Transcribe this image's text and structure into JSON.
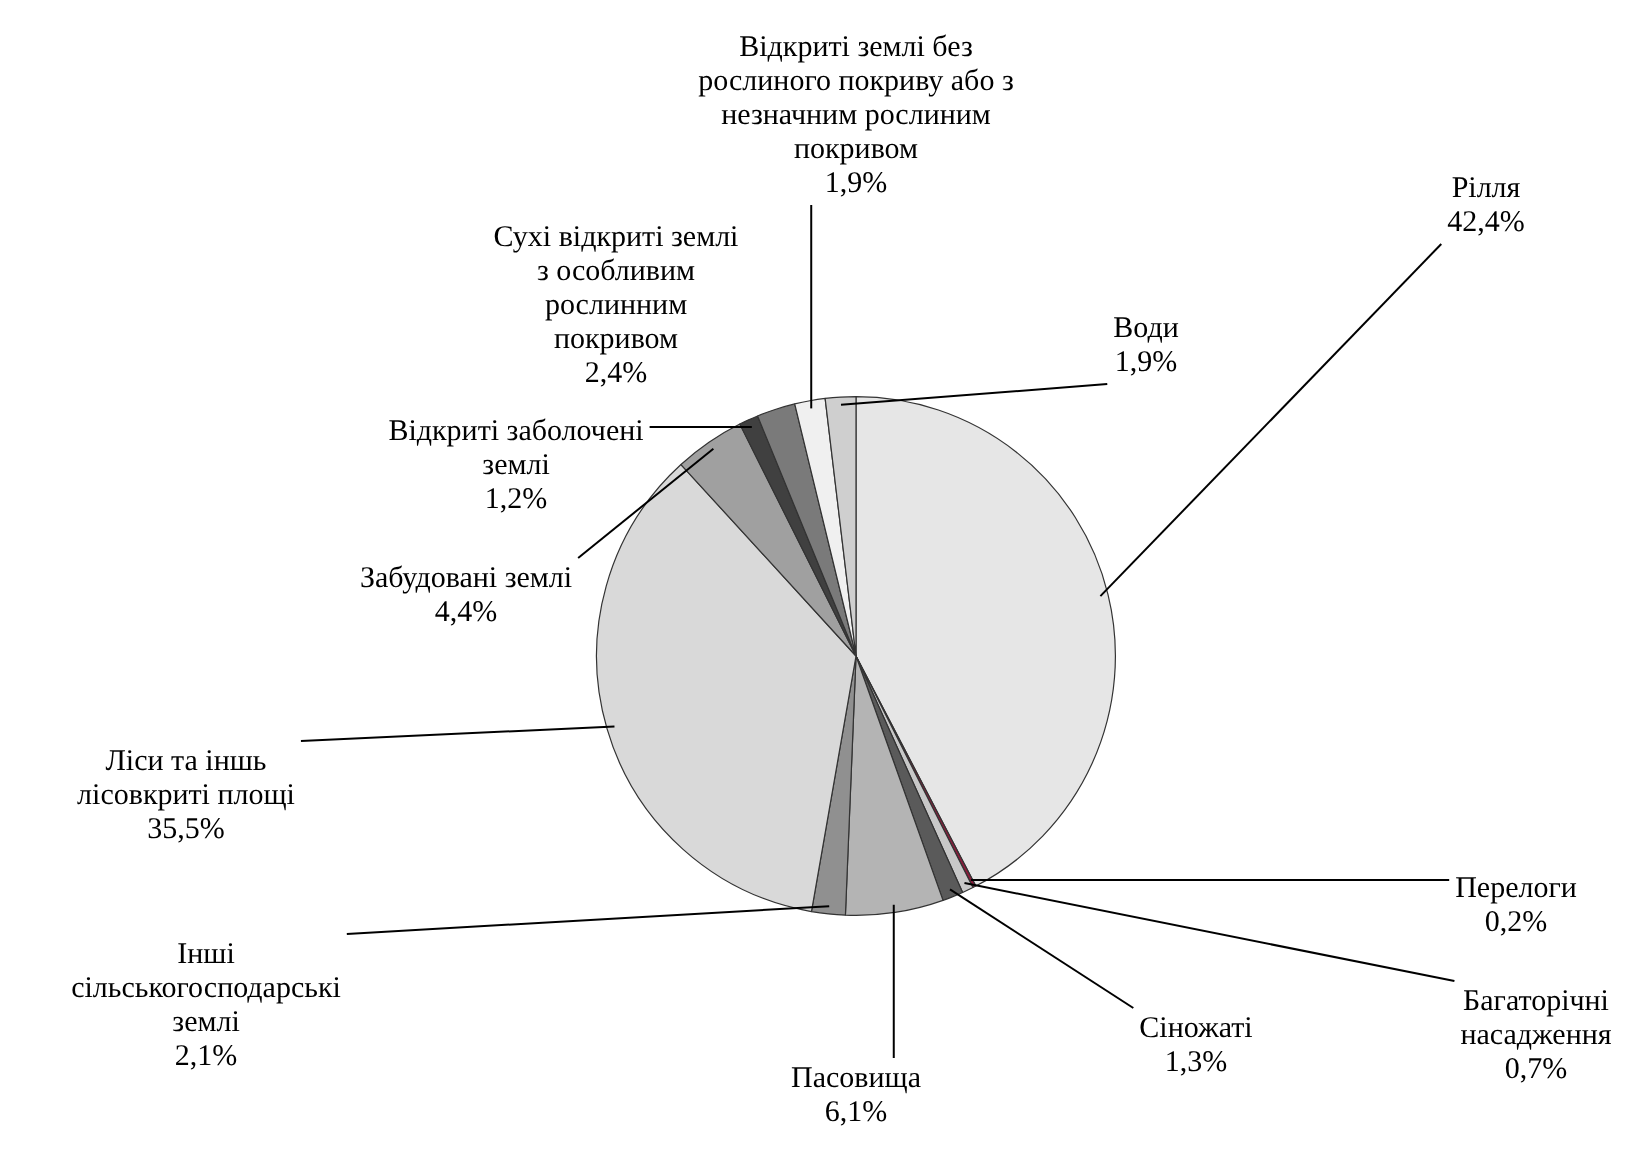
{
  "chart_data": {
    "type": "pie",
    "categories": [
      "Рілля",
      "Перелоги",
      "Багаторічні насадження",
      "Сіножаті",
      "Пасовища",
      "Інші сільськогосподарські землі",
      "Ліси та іншь лісовкриті площі",
      "Забудовані землі",
      "Відкриті заболочені землі",
      "Сухі відкриті землі з особливим рослинним покривом",
      "Відкриті землі без рослиного покриву або з незначним рослиним покривом",
      "Води"
    ],
    "values": [
      42.4,
      0.2,
      0.7,
      1.3,
      6.1,
      2.1,
      35.5,
      4.4,
      1.2,
      2.4,
      1.9,
      1.9
    ],
    "colors": [
      "#e6e6e6",
      "#8c1c3c",
      "#c8c8c8",
      "#5a5a5a",
      "#b4b4b4",
      "#909090",
      "#d9d9d9",
      "#a0a0a0",
      "#404040",
      "#7a7a7a",
      "#f0f0f0",
      "#cfcfcf"
    ],
    "value_labels": [
      "42,4%",
      "0,2%",
      "0,7%",
      "1,3%",
      "6,1%",
      "2,1%",
      "35,5%",
      "4,4%",
      "1,2%",
      "2,4%",
      "1,9%",
      "1,9%"
    ],
    "legend": false
  }
}
